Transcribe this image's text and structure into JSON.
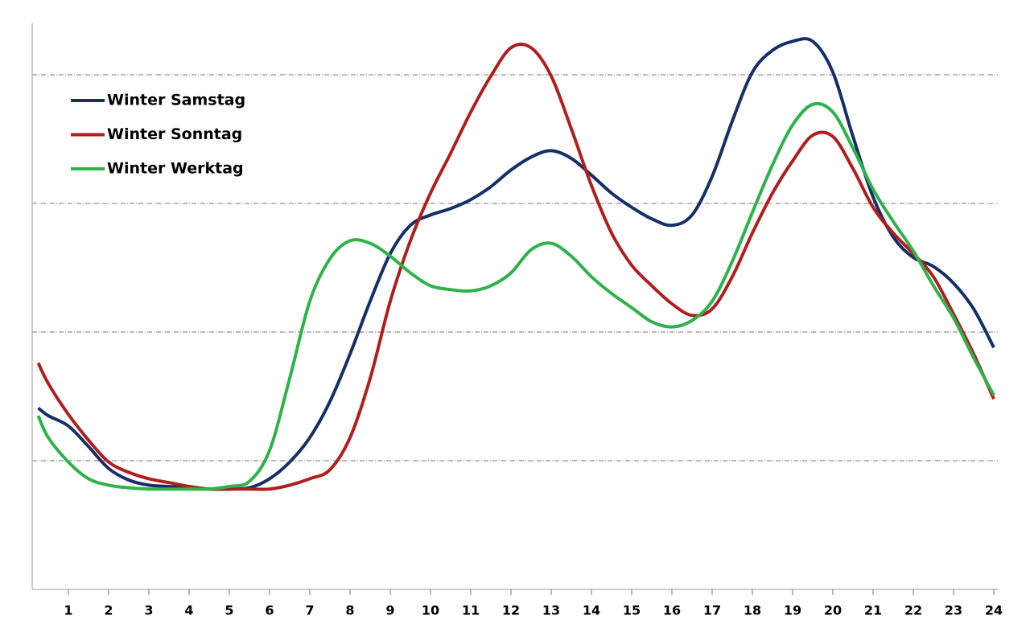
{
  "chart_data": {
    "type": "line",
    "x": [
      0.25,
      0.5,
      1,
      1.5,
      2,
      2.5,
      3,
      3.5,
      4,
      4.5,
      5,
      5.5,
      6,
      6.5,
      7,
      7.5,
      8,
      8.5,
      9,
      9.5,
      10,
      10.5,
      11,
      11.5,
      12,
      12.5,
      13,
      13.5,
      14,
      14.5,
      15,
      15.5,
      16,
      16.5,
      17,
      17.5,
      18,
      18.5,
      19,
      19.5,
      20,
      20.5,
      21,
      21.5,
      22,
      22.5,
      23,
      23.5,
      24
    ],
    "series": [
      {
        "name": "Winter Samstag",
        "color": "#162f66",
        "values": [
          1.41,
          1.35,
          1.27,
          1.11,
          0.94,
          0.85,
          0.81,
          0.8,
          0.79,
          0.78,
          0.78,
          0.79,
          0.86,
          0.99,
          1.18,
          1.46,
          1.83,
          2.24,
          2.61,
          2.83,
          2.91,
          2.96,
          3.03,
          3.13,
          3.26,
          3.36,
          3.41,
          3.35,
          3.22,
          3.08,
          2.97,
          2.88,
          2.83,
          2.91,
          3.21,
          3.64,
          4.02,
          4.19,
          4.26,
          4.26,
          4.02,
          3.52,
          3.05,
          2.74,
          2.58,
          2.51,
          2.38,
          2.18,
          1.88
        ]
      },
      {
        "name": "Winter Sonntag",
        "color": "#b01e1e",
        "values": [
          1.76,
          1.6,
          1.36,
          1.16,
          0.99,
          0.91,
          0.86,
          0.83,
          0.8,
          0.78,
          0.78,
          0.78,
          0.78,
          0.81,
          0.86,
          0.93,
          1.18,
          1.64,
          2.24,
          2.71,
          3.08,
          3.39,
          3.71,
          3.99,
          4.21,
          4.21,
          3.99,
          3.58,
          3.14,
          2.77,
          2.52,
          2.36,
          2.22,
          2.13,
          2.18,
          2.43,
          2.77,
          3.08,
          3.33,
          3.53,
          3.52,
          3.27,
          2.97,
          2.77,
          2.61,
          2.43,
          2.14,
          1.83,
          1.48
        ]
      },
      {
        "name": "Winter Werktag",
        "color": "#2fb24c",
        "values": [
          1.35,
          1.18,
          0.99,
          0.86,
          0.81,
          0.79,
          0.78,
          0.78,
          0.78,
          0.78,
          0.8,
          0.84,
          1.08,
          1.64,
          2.24,
          2.57,
          2.71,
          2.69,
          2.59,
          2.46,
          2.36,
          2.33,
          2.32,
          2.36,
          2.46,
          2.64,
          2.69,
          2.59,
          2.43,
          2.3,
          2.19,
          2.08,
          2.04,
          2.09,
          2.24,
          2.55,
          2.93,
          3.3,
          3.61,
          3.77,
          3.71,
          3.43,
          3.11,
          2.86,
          2.63,
          2.36,
          2.11,
          1.8,
          1.51
        ]
      }
    ],
    "xlim": [
      0.1,
      24.1
    ],
    "xticks": [
      1,
      2,
      3,
      4,
      5,
      6,
      7,
      8,
      9,
      10,
      11,
      12,
      13,
      14,
      15,
      16,
      17,
      18,
      19,
      20,
      21,
      22,
      23,
      24
    ],
    "ylim": [
      0,
      4.4
    ],
    "ygrid": [
      1,
      2,
      3,
      4
    ],
    "legend": "top-left"
  }
}
